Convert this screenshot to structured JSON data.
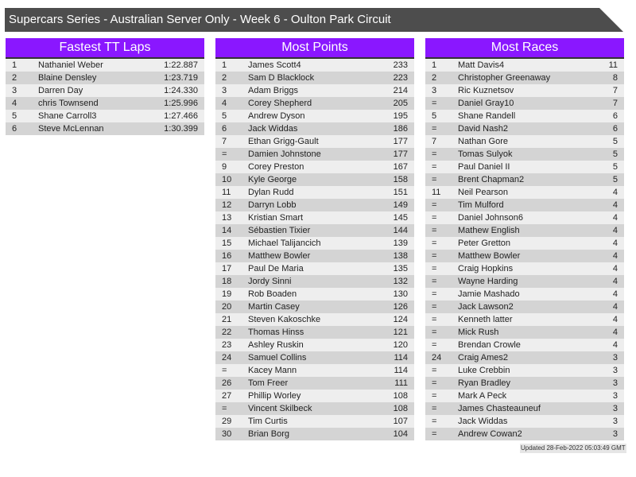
{
  "title": "Supercars Series - Australian Server Only - Week 6 - Oulton Park Circuit",
  "tables": [
    {
      "heading": "Fastest TT Laps",
      "rows": [
        [
          "1",
          "Nathaniel Weber",
          "1:22.887"
        ],
        [
          "2",
          "Blaine Densley",
          "1:23.719"
        ],
        [
          "3",
          "Darren Day",
          "1:24.330"
        ],
        [
          "4",
          "chris Townsend",
          "1:25.996"
        ],
        [
          "5",
          "Shane Carroll3",
          "1:27.466"
        ],
        [
          "6",
          "Steve McLennan",
          "1:30.399"
        ]
      ]
    },
    {
      "heading": "Most Points",
      "rows": [
        [
          "1",
          "James Scott4",
          "233"
        ],
        [
          "2",
          "Sam D Blacklock",
          "223"
        ],
        [
          "3",
          "Adam Briggs",
          "214"
        ],
        [
          "4",
          "Corey Shepherd",
          "205"
        ],
        [
          "5",
          "Andrew Dyson",
          "195"
        ],
        [
          "6",
          "Jack Widdas",
          "186"
        ],
        [
          "7",
          "Ethan Grigg-Gault",
          "177"
        ],
        [
          "=",
          "Damien Johnstone",
          "177"
        ],
        [
          "9",
          "Corey Preston",
          "167"
        ],
        [
          "10",
          "Kyle George",
          "158"
        ],
        [
          "11",
          "Dylan Rudd",
          "151"
        ],
        [
          "12",
          "Darryn Lobb",
          "149"
        ],
        [
          "13",
          "Kristian Smart",
          "145"
        ],
        [
          "14",
          "Sébastien Tixier",
          "144"
        ],
        [
          "15",
          "Michael Talijancich",
          "139"
        ],
        [
          "16",
          "Matthew Bowler",
          "138"
        ],
        [
          "17",
          "Paul De Maria",
          "135"
        ],
        [
          "18",
          "Jordy Sinni",
          "132"
        ],
        [
          "19",
          "Rob Boaden",
          "130"
        ],
        [
          "20",
          "Martin Casey",
          "126"
        ],
        [
          "21",
          "Steven Kakoschke",
          "124"
        ],
        [
          "22",
          "Thomas Hinss",
          "121"
        ],
        [
          "23",
          "Ashley Ruskin",
          "120"
        ],
        [
          "24",
          "Samuel Collins",
          "114"
        ],
        [
          "=",
          "Kacey Mann",
          "114"
        ],
        [
          "26",
          "Tom Freer",
          "111"
        ],
        [
          "27",
          "Phillip Worley",
          "108"
        ],
        [
          "=",
          "Vincent Skilbeck",
          "108"
        ],
        [
          "29",
          "Tim Curtis",
          "107"
        ],
        [
          "30",
          "Brian Borg",
          "104"
        ]
      ]
    },
    {
      "heading": "Most Races",
      "rows": [
        [
          "1",
          "Matt Davis4",
          "11"
        ],
        [
          "2",
          "Christopher Greenaway",
          "8"
        ],
        [
          "3",
          "Ric Kuznetsov",
          "7"
        ],
        [
          "=",
          "Daniel Gray10",
          "7"
        ],
        [
          "5",
          "Shane Randell",
          "6"
        ],
        [
          "=",
          "David Nash2",
          "6"
        ],
        [
          "7",
          "Nathan Gore",
          "5"
        ],
        [
          "=",
          "Tomas Sulyok",
          "5"
        ],
        [
          "=",
          "Paul Daniel II",
          "5"
        ],
        [
          "=",
          "Brent Chapman2",
          "5"
        ],
        [
          "11",
          "Neil Pearson",
          "4"
        ],
        [
          "=",
          "Tim Mulford",
          "4"
        ],
        [
          "=",
          "Daniel Johnson6",
          "4"
        ],
        [
          "=",
          "Mathew English",
          "4"
        ],
        [
          "=",
          "Peter Gretton",
          "4"
        ],
        [
          "=",
          "Matthew Bowler",
          "4"
        ],
        [
          "=",
          "Craig Hopkins",
          "4"
        ],
        [
          "=",
          "Wayne Harding",
          "4"
        ],
        [
          "=",
          "Jamie Mashado",
          "4"
        ],
        [
          "=",
          "Jack Lawson2",
          "4"
        ],
        [
          "=",
          "Kenneth latter",
          "4"
        ],
        [
          "=",
          "Mick Rush",
          "4"
        ],
        [
          "=",
          "Brendan Crowle",
          "4"
        ],
        [
          "24",
          "Craig Ames2",
          "3"
        ],
        [
          "=",
          "Luke Crebbin",
          "3"
        ],
        [
          "=",
          "Ryan Bradley",
          "3"
        ],
        [
          "=",
          "Mark A Peck",
          "3"
        ],
        [
          "=",
          "James Chasteauneuf",
          "3"
        ],
        [
          "=",
          "Jack Widdas",
          "3"
        ],
        [
          "=",
          "Andrew Cowan2",
          "3"
        ]
      ]
    }
  ],
  "updated": "Updated 28-Feb-2022 05:03:49 GMT",
  "colors": {
    "header": "#8a17ff",
    "title_bar": "#4d4d4d"
  }
}
